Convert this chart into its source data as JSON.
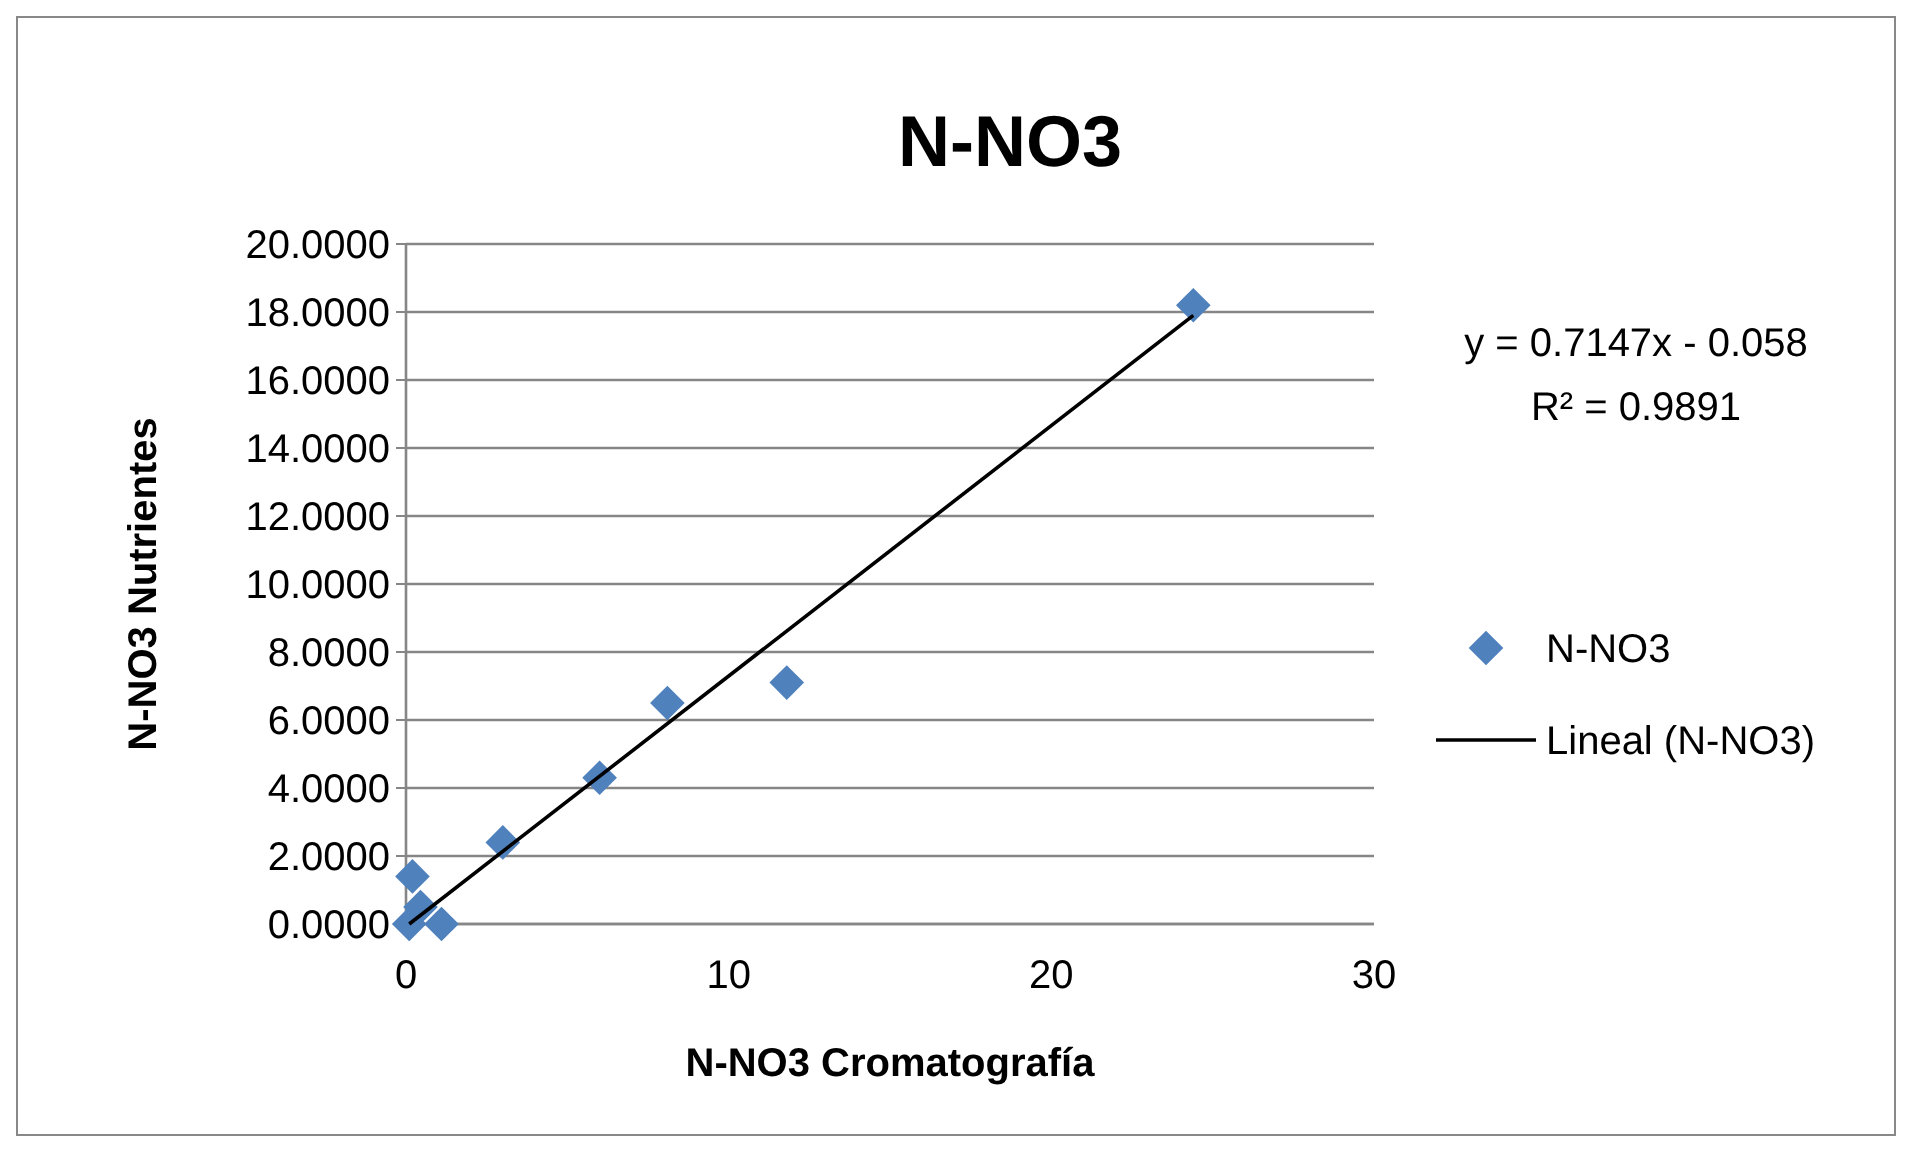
{
  "chart_data": {
    "type": "scatter",
    "title": "N-NO3",
    "xlabel": "N-NO3 Cromatografía",
    "ylabel": "N-NO3 Nutrientes",
    "xlim": [
      0,
      30
    ],
    "xticks": [
      0,
      10,
      20,
      30
    ],
    "ylim": [
      0,
      20
    ],
    "yticks": [
      {
        "value": 0,
        "label": "0.0000"
      },
      {
        "value": 2,
        "label": "2.0000"
      },
      {
        "value": 4,
        "label": "4.0000"
      },
      {
        "value": 6,
        "label": "6.0000"
      },
      {
        "value": 8,
        "label": "8.0000"
      },
      {
        "value": 10,
        "label": "10.0000"
      },
      {
        "value": 12,
        "label": "12.0000"
      },
      {
        "value": 14,
        "label": "14.0000"
      },
      {
        "value": 16,
        "label": "16.0000"
      },
      {
        "value": 18,
        "label": "18.0000"
      },
      {
        "value": 20,
        "label": "20.0000"
      }
    ],
    "grid": "y",
    "legend": "right",
    "annotations": [
      "y = 0.7147x - 0.058",
      "R² = 0.9891"
    ],
    "series": [
      {
        "name": "N-NO3",
        "marker": "diamond",
        "color": "#4f81bd",
        "x": [
          0.1,
          0.45,
          0.2,
          1.1,
          3.0,
          6.0,
          8.1,
          11.8,
          24.4
        ],
        "values": [
          0.0,
          0.5,
          1.4,
          0.0,
          2.4,
          4.3,
          6.5,
          7.1,
          18.2
        ]
      },
      {
        "name": "Lineal (N-NO3)",
        "type": "line",
        "color": "#000000",
        "marker": "none",
        "line_style": "solid",
        "x": [
          0.1,
          24.4
        ],
        "values": [
          0.0,
          17.9
        ]
      }
    ]
  }
}
